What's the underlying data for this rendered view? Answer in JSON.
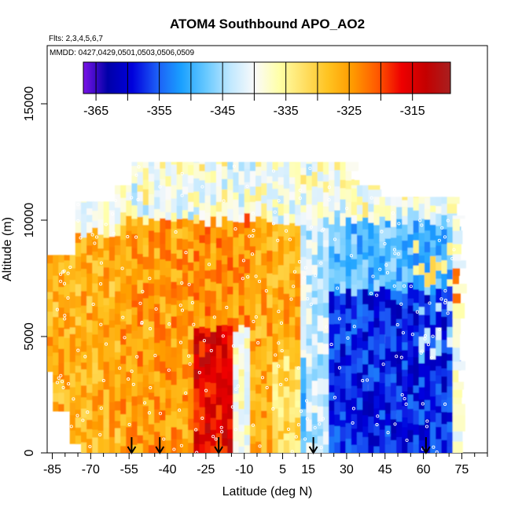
{
  "chart_data": {
    "type": "heatmap",
    "title": "ATOM4 Southbound APO_AO2",
    "subtitle_flights": "Flts: 2,3,4,5,6,7",
    "subtitle_dates": "MMDD: 0427,0429,0501,0503,0506,0509",
    "xlabel": "Latitude (deg N)",
    "ylabel": "Altitude (m)",
    "xlim": [
      -87,
      85
    ],
    "ylim": [
      0,
      17500
    ],
    "x_ticks": [
      -85,
      -70,
      -55,
      -40,
      -25,
      -10,
      5,
      15,
      30,
      45,
      60,
      75
    ],
    "y_ticks": [
      0,
      5000,
      10000,
      15000
    ],
    "colorbar": {
      "range": [
        -367,
        -309
      ],
      "ticks": [
        -365,
        -355,
        -345,
        -335,
        -325,
        -315
      ],
      "palette": [
        "#7a14e6",
        "#0000a8",
        "#0000dc",
        "#1c5cf6",
        "#1aa0ff",
        "#66c8ff",
        "#c0e8ff",
        "#fafafa",
        "#ffffa8",
        "#ffe066",
        "#ffc320",
        "#ff9a00",
        "#ff5a00",
        "#ee0000",
        "#c40000",
        "#a82020"
      ]
    },
    "arrow_latitudes": [
      -54,
      -43,
      -20,
      17,
      61
    ],
    "field_regions": [
      {
        "lat": [
          -87,
          -58
        ],
        "alt": [
          0,
          9500
        ],
        "value": -327
      },
      {
        "lat": [
          -58,
          -30
        ],
        "alt": [
          0,
          10000
        ],
        "value": -325
      },
      {
        "lat": [
          -30,
          -15
        ],
        "alt": [
          0,
          5500
        ],
        "value": -316
      },
      {
        "lat": [
          -30,
          -8
        ],
        "alt": [
          5500,
          10000
        ],
        "value": -324
      },
      {
        "lat": [
          -8,
          12
        ],
        "alt": [
          0,
          10000
        ],
        "value": -326
      },
      {
        "lat": [
          12,
          22
        ],
        "alt": [
          0,
          11000
        ],
        "value": -343
      },
      {
        "lat": [
          22,
          72
        ],
        "alt": [
          0,
          7000
        ],
        "value": -358
      },
      {
        "lat": [
          22,
          72
        ],
        "alt": [
          7000,
          11000
        ],
        "value": -349
      },
      {
        "lat": [
          -58,
          40
        ],
        "alt": [
          10000,
          12500
        ],
        "value": -339
      }
    ]
  }
}
